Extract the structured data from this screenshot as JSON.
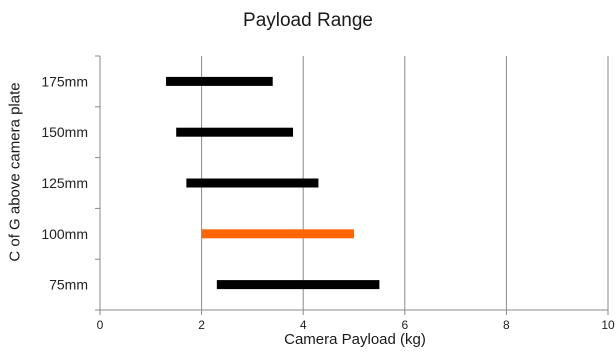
{
  "chart_data": {
    "type": "bar",
    "orientation": "horizontal-range",
    "title": "Payload Range",
    "xlabel": "Camera Payload (kg)",
    "ylabel": "C of G above camera plate",
    "xlim": [
      0,
      10
    ],
    "xticks": [
      "0",
      "2",
      "4",
      "6",
      "8",
      "10"
    ],
    "grid": "vertical",
    "categories": [
      "75mm",
      "100mm",
      "125mm",
      "150mm",
      "175mm"
    ],
    "ranges": [
      {
        "category": "75mm",
        "min": 2.3,
        "max": 5.5,
        "color": "#000000"
      },
      {
        "category": "100mm",
        "min": 2.0,
        "max": 5.0,
        "color": "#ff6600"
      },
      {
        "category": "125mm",
        "min": 1.7,
        "max": 4.3,
        "color": "#000000"
      },
      {
        "category": "150mm",
        "min": 1.5,
        "max": 3.8,
        "color": "#000000"
      },
      {
        "category": "175mm",
        "min": 1.3,
        "max": 3.4,
        "color": "#000000"
      }
    ]
  }
}
